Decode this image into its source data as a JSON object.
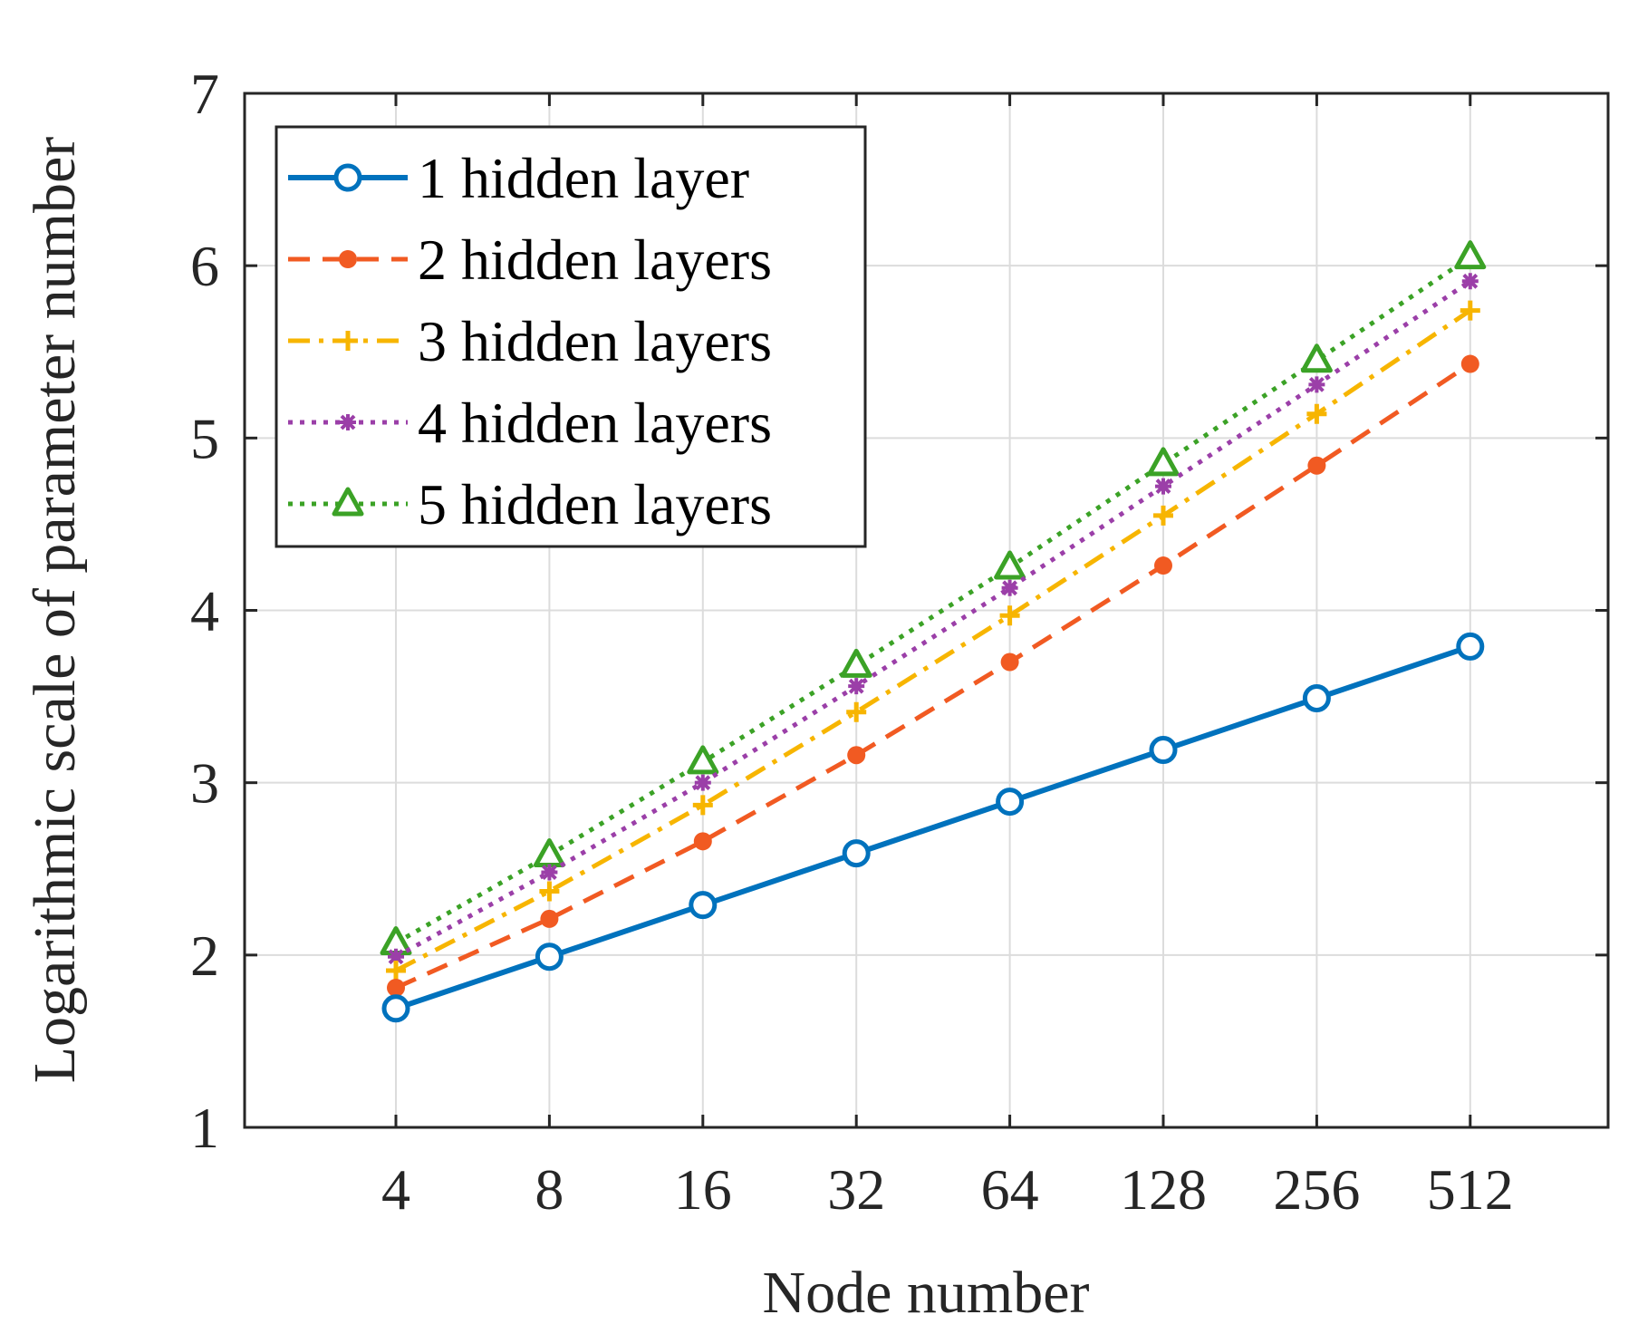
{
  "chart_data": {
    "type": "line",
    "title": "",
    "xlabel": "Node number",
    "ylabel": "Logarithmic scale of parameter number",
    "categories": [
      "4",
      "8",
      "16",
      "32",
      "64",
      "128",
      "256",
      "512"
    ],
    "ylim": [
      1,
      7
    ],
    "yticks": [
      "1",
      "2",
      "3",
      "4",
      "5",
      "6",
      "7"
    ],
    "grid": true,
    "legend_position": "top-left",
    "series": [
      {
        "name": "1 hidden layer",
        "color": "#0072BD",
        "line": "solid",
        "marker": "circle",
        "values": [
          1.69,
          1.99,
          2.29,
          2.59,
          2.89,
          3.19,
          3.49,
          3.79
        ]
      },
      {
        "name": "2 hidden layers",
        "color": "#F15A22",
        "line": "dashed",
        "marker": "dot",
        "values": [
          1.81,
          2.21,
          2.66,
          3.16,
          3.7,
          4.26,
          4.84,
          5.43
        ]
      },
      {
        "name": "3 hidden layers",
        "color": "#F7B500",
        "line": "dashdot",
        "marker": "plus",
        "values": [
          1.91,
          2.37,
          2.87,
          3.41,
          3.97,
          4.55,
          5.14,
          5.74
        ]
      },
      {
        "name": "4 hidden layers",
        "color": "#9B3FA8",
        "line": "dotted",
        "marker": "asterisk",
        "values": [
          1.99,
          2.48,
          3.0,
          3.56,
          4.13,
          4.72,
          5.31,
          5.91
        ]
      },
      {
        "name": "5 hidden layers",
        "color": "#3BA226",
        "line": "dotted",
        "marker": "triangle",
        "values": [
          2.07,
          2.58,
          3.12,
          3.68,
          4.25,
          4.85,
          5.45,
          6.05
        ]
      }
    ]
  }
}
